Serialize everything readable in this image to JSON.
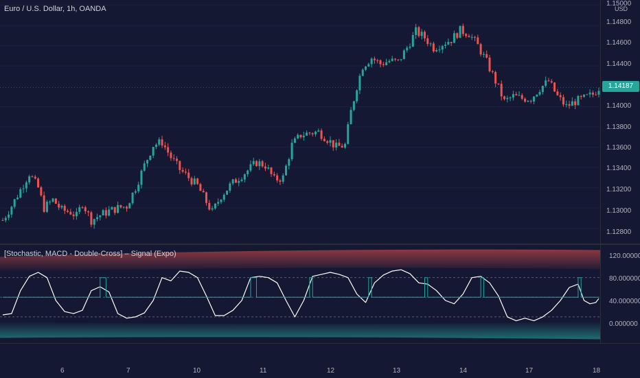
{
  "header": {
    "symbol_title": "Euro / U.S. Dollar, 1h, OANDA",
    "currency": "USD"
  },
  "price_axis": {
    "ticks": [
      "1.15000",
      "1.14800",
      "1.14600",
      "1.14400",
      "1.14000",
      "1.13800",
      "1.13600",
      "1.13400",
      "1.13200",
      "1.13000",
      "1.12800"
    ],
    "last_price": "1.14187"
  },
  "oscillator": {
    "title": "[Stochastic,  MACD - Double-Cross] – Signal (Expo)",
    "ticks": [
      "120.000000",
      "80.000000",
      "40.000000",
      "0.000000"
    ]
  },
  "time_axis": {
    "labels": [
      "6",
      "7",
      "10",
      "11",
      "12",
      "13",
      "14",
      "17",
      "18"
    ]
  },
  "colors": {
    "background": "#141833",
    "up_candle": "#26a69a",
    "down_candle": "#ef5350",
    "osc_line": "#ffffff",
    "signal_line": "#26a69a",
    "last_price_tag": "#26a69a"
  },
  "chart_data": [
    {
      "type": "candlestick",
      "title": "Euro / U.S. Dollar, 1h, OANDA",
      "y_unit": "USD",
      "ylim": [
        1.1265,
        1.1505
      ],
      "x_categories": [
        "6",
        "7",
        "10",
        "11",
        "12",
        "13",
        "14",
        "17",
        "18"
      ],
      "last_price": 1.14187,
      "close_path": [
        {
          "x": 0,
          "close": 1.1288
        },
        {
          "x": 3,
          "close": 1.1302
        },
        {
          "x": 6,
          "close": 1.1318
        },
        {
          "x": 9,
          "close": 1.1334
        },
        {
          "x": 12,
          "close": 1.132
        },
        {
          "x": 14,
          "close": 1.13
        },
        {
          "x": 17,
          "close": 1.1308
        },
        {
          "x": 20,
          "close": 1.1298
        },
        {
          "x": 23,
          "close": 1.1296
        },
        {
          "x": 25,
          "close": 1.1292
        },
        {
          "x": 27,
          "close": 1.1305
        },
        {
          "x": 30,
          "close": 1.1288
        },
        {
          "x": 33,
          "close": 1.1293
        },
        {
          "x": 36,
          "close": 1.1297
        },
        {
          "x": 39,
          "close": 1.13
        },
        {
          "x": 42,
          "close": 1.1302
        },
        {
          "x": 45,
          "close": 1.132
        },
        {
          "x": 48,
          "close": 1.1342
        },
        {
          "x": 51,
          "close": 1.1362
        },
        {
          "x": 54,
          "close": 1.1365
        },
        {
          "x": 57,
          "close": 1.135
        },
        {
          "x": 60,
          "close": 1.1338
        },
        {
          "x": 63,
          "close": 1.133
        },
        {
          "x": 66,
          "close": 1.1322
        },
        {
          "x": 69,
          "close": 1.1306
        },
        {
          "x": 71,
          "close": 1.1296
        },
        {
          "x": 74,
          "close": 1.1312
        },
        {
          "x": 77,
          "close": 1.1322
        },
        {
          "x": 80,
          "close": 1.133
        },
        {
          "x": 83,
          "close": 1.1337
        },
        {
          "x": 86,
          "close": 1.1345
        },
        {
          "x": 89,
          "close": 1.1342
        },
        {
          "x": 92,
          "close": 1.1328
        },
        {
          "x": 95,
          "close": 1.133
        },
        {
          "x": 98,
          "close": 1.1362
        },
        {
          "x": 101,
          "close": 1.1372
        },
        {
          "x": 104,
          "close": 1.1374
        },
        {
          "x": 107,
          "close": 1.1375
        },
        {
          "x": 110,
          "close": 1.1368
        },
        {
          "x": 113,
          "close": 1.136
        },
        {
          "x": 116,
          "close": 1.1362
        },
        {
          "x": 118,
          "close": 1.1395
        },
        {
          "x": 120,
          "close": 1.142
        },
        {
          "x": 122,
          "close": 1.144
        },
        {
          "x": 125,
          "close": 1.1448
        },
        {
          "x": 128,
          "close": 1.1442
        },
        {
          "x": 131,
          "close": 1.1445
        },
        {
          "x": 134,
          "close": 1.1444
        },
        {
          "x": 137,
          "close": 1.1458
        },
        {
          "x": 140,
          "close": 1.1474
        },
        {
          "x": 143,
          "close": 1.1468
        },
        {
          "x": 146,
          "close": 1.1458
        },
        {
          "x": 149,
          "close": 1.1462
        },
        {
          "x": 152,
          "close": 1.1466
        },
        {
          "x": 155,
          "close": 1.1475
        },
        {
          "x": 158,
          "close": 1.1472
        },
        {
          "x": 161,
          "close": 1.146
        },
        {
          "x": 164,
          "close": 1.1444
        },
        {
          "x": 167,
          "close": 1.1425
        },
        {
          "x": 170,
          "close": 1.1405
        },
        {
          "x": 173,
          "close": 1.141
        },
        {
          "x": 176,
          "close": 1.1408
        },
        {
          "x": 179,
          "close": 1.1408
        },
        {
          "x": 182,
          "close": 1.1418
        },
        {
          "x": 185,
          "close": 1.1425
        },
        {
          "x": 188,
          "close": 1.141
        },
        {
          "x": 191,
          "close": 1.14
        },
        {
          "x": 194,
          "close": 1.1405
        },
        {
          "x": 197,
          "close": 1.1408
        },
        {
          "x": 200,
          "close": 1.1412
        },
        {
          "x": 202,
          "close": 1.14187
        }
      ]
    },
    {
      "type": "line",
      "title": "[Stochastic,  MACD - Double-Cross] – Signal (Expo)",
      "ylim": [
        -20,
        130
      ],
      "reference_levels": [
        80,
        50,
        20
      ],
      "band_upper": 120,
      "band_lower": -10,
      "series": [
        {
          "name": "Stochastic",
          "values": [
            {
              "x": 0,
              "y": 23
            },
            {
              "x": 3,
              "y": 25
            },
            {
              "x": 6,
              "y": 60
            },
            {
              "x": 9,
              "y": 82
            },
            {
              "x": 12,
              "y": 88
            },
            {
              "x": 15,
              "y": 80
            },
            {
              "x": 18,
              "y": 45
            },
            {
              "x": 21,
              "y": 28
            },
            {
              "x": 24,
              "y": 25
            },
            {
              "x": 27,
              "y": 30
            },
            {
              "x": 30,
              "y": 60
            },
            {
              "x": 33,
              "y": 66
            },
            {
              "x": 36,
              "y": 58
            },
            {
              "x": 39,
              "y": 25
            },
            {
              "x": 42,
              "y": 18
            },
            {
              "x": 45,
              "y": 20
            },
            {
              "x": 48,
              "y": 26
            },
            {
              "x": 51,
              "y": 45
            },
            {
              "x": 54,
              "y": 80
            },
            {
              "x": 57,
              "y": 75
            },
            {
              "x": 60,
              "y": 90
            },
            {
              "x": 63,
              "y": 88
            },
            {
              "x": 66,
              "y": 80
            },
            {
              "x": 69,
              "y": 52
            },
            {
              "x": 72,
              "y": 22
            },
            {
              "x": 75,
              "y": 22
            },
            {
              "x": 78,
              "y": 30
            },
            {
              "x": 81,
              "y": 45
            },
            {
              "x": 84,
              "y": 80
            },
            {
              "x": 87,
              "y": 82
            },
            {
              "x": 90,
              "y": 80
            },
            {
              "x": 93,
              "y": 72
            },
            {
              "x": 96,
              "y": 45
            },
            {
              "x": 99,
              "y": 20
            },
            {
              "x": 102,
              "y": 45
            },
            {
              "x": 105,
              "y": 82
            },
            {
              "x": 108,
              "y": 85
            },
            {
              "x": 111,
              "y": 88
            },
            {
              "x": 114,
              "y": 85
            },
            {
              "x": 117,
              "y": 80
            },
            {
              "x": 120,
              "y": 55
            },
            {
              "x": 123,
              "y": 42
            },
            {
              "x": 126,
              "y": 72
            },
            {
              "x": 129,
              "y": 84
            },
            {
              "x": 132,
              "y": 90
            },
            {
              "x": 135,
              "y": 92
            },
            {
              "x": 138,
              "y": 86
            },
            {
              "x": 141,
              "y": 72
            },
            {
              "x": 144,
              "y": 70
            },
            {
              "x": 147,
              "y": 60
            },
            {
              "x": 150,
              "y": 45
            },
            {
              "x": 153,
              "y": 40
            },
            {
              "x": 156,
              "y": 55
            },
            {
              "x": 159,
              "y": 80
            },
            {
              "x": 162,
              "y": 82
            },
            {
              "x": 165,
              "y": 72
            },
            {
              "x": 168,
              "y": 52
            },
            {
              "x": 171,
              "y": 20
            },
            {
              "x": 174,
              "y": 14
            },
            {
              "x": 177,
              "y": 18
            },
            {
              "x": 180,
              "y": 14
            },
            {
              "x": 183,
              "y": 20
            },
            {
              "x": 186,
              "y": 30
            },
            {
              "x": 189,
              "y": 45
            },
            {
              "x": 192,
              "y": 65
            },
            {
              "x": 195,
              "y": 70
            },
            {
              "x": 197,
              "y": 45
            },
            {
              "x": 199,
              "y": 40
            },
            {
              "x": 201,
              "y": 42
            },
            {
              "x": 202,
              "y": 48
            }
          ]
        },
        {
          "name": "Signal",
          "values": [
            {
              "x": 0,
              "y": 50
            },
            {
              "x": 33,
              "y": 50
            },
            {
              "x": 33,
              "y": 80
            },
            {
              "x": 35,
              "y": 80
            },
            {
              "x": 35,
              "y": 50
            },
            {
              "x": 84,
              "y": 50
            },
            {
              "x": 84,
              "y": 80
            },
            {
              "x": 86,
              "y": 80
            },
            {
              "x": 86,
              "y": 50
            },
            {
              "x": 104,
              "y": 50
            },
            {
              "x": 104,
              "y": 80
            },
            {
              "x": 105,
              "y": 80
            },
            {
              "x": 105,
              "y": 50
            },
            {
              "x": 124,
              "y": 50
            },
            {
              "x": 124,
              "y": 80
            },
            {
              "x": 125,
              "y": 80
            },
            {
              "x": 125,
              "y": 50
            },
            {
              "x": 143,
              "y": 50
            },
            {
              "x": 143,
              "y": 80
            },
            {
              "x": 144,
              "y": 80
            },
            {
              "x": 144,
              "y": 50
            },
            {
              "x": 162,
              "y": 50
            },
            {
              "x": 162,
              "y": 80
            },
            {
              "x": 163,
              "y": 80
            },
            {
              "x": 163,
              "y": 50
            },
            {
              "x": 195,
              "y": 50
            },
            {
              "x": 195,
              "y": 80
            },
            {
              "x": 196,
              "y": 80
            },
            {
              "x": 196,
              "y": 50
            },
            {
              "x": 202,
              "y": 50
            }
          ]
        }
      ]
    }
  ]
}
